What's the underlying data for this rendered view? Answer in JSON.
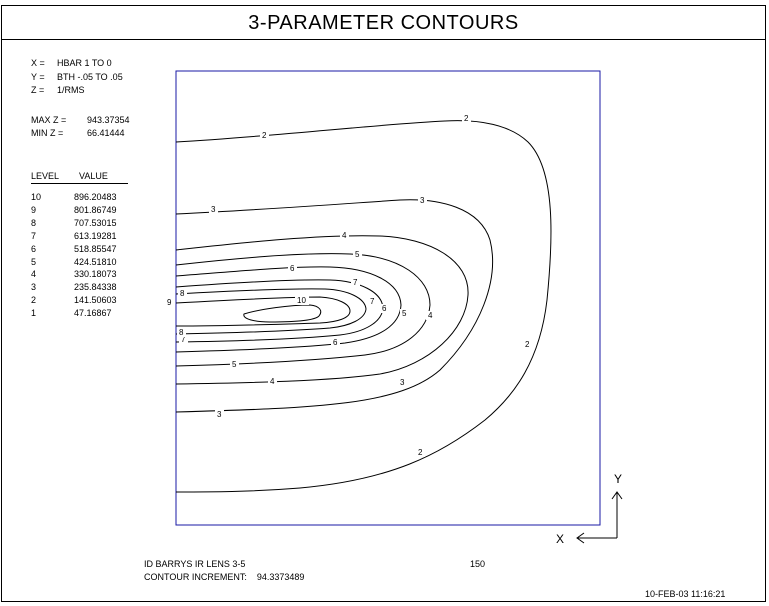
{
  "title": "3-PARAMETER CONTOURS",
  "params": [
    {
      "label": "X =",
      "value": "HBAR 1 TO 0"
    },
    {
      "label": "Y =",
      "value": "BTH -.05 TO .05"
    },
    {
      "label": "Z =",
      "value": "1/RMS"
    }
  ],
  "extremes": [
    {
      "label": "MAX Z =",
      "value": "943.37354"
    },
    {
      "label": "MIN Z =",
      "value": "66.41444"
    }
  ],
  "legend_headers": {
    "level": "LEVEL",
    "value": "VALUE"
  },
  "levels": [
    {
      "level": "10",
      "value": "896.20483"
    },
    {
      "level": "9",
      "value": "801.86749"
    },
    {
      "level": "8",
      "value": "707.53015"
    },
    {
      "level": "7",
      "value": "613.19281"
    },
    {
      "level": "6",
      "value": "518.85547"
    },
    {
      "level": "5",
      "value": "424.51810"
    },
    {
      "level": "4",
      "value": "330.18073"
    },
    {
      "level": "3",
      "value": "235.84338"
    },
    {
      "level": "2",
      "value": "141.50603"
    },
    {
      "level": "1",
      "value": "47.16867"
    }
  ],
  "footer": {
    "id_text": "ID BARRYS IR LENS 3-5",
    "id_number": "150",
    "increment_label": "CONTOUR INCREMENT:",
    "increment_value": "94.3373489",
    "timestamp": "10-FEB-03  11:16:21"
  },
  "axis_indicator": {
    "x": "X",
    "y": "Y"
  },
  "chart_data": {
    "type": "contour",
    "x_range": [
      1,
      0
    ],
    "y_range": [
      -0.05,
      0.05
    ],
    "z_range": [
      66.41444,
      943.37354
    ],
    "increment": 94.3373489,
    "levels": [
      47.16867,
      141.50603,
      235.84338,
      330.18073,
      424.5181,
      518.85547,
      613.19281,
      707.53015,
      801.86749,
      896.20483
    ],
    "contour_labels": [
      "2",
      "2",
      "2",
      "2",
      "3",
      "3",
      "3",
      "3",
      "4",
      "4",
      "4",
      "5",
      "5",
      "5",
      "5",
      "6",
      "6",
      "6",
      "7",
      "7",
      "7",
      "8",
      "8",
      "9",
      "10"
    ],
    "frame_color": "#1a1aa6",
    "line_color": "#000000"
  }
}
